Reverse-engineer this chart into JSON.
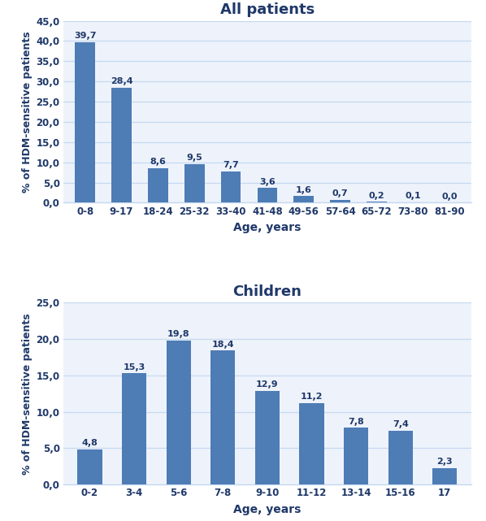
{
  "chart1": {
    "title": "All patients",
    "categories": [
      "0-8",
      "9-17",
      "18-24",
      "25-32",
      "33-40",
      "41-48",
      "49-56",
      "57-64",
      "65-72",
      "73-80",
      "81-90"
    ],
    "values": [
      39.7,
      28.4,
      8.6,
      9.5,
      7.7,
      3.6,
      1.6,
      0.7,
      0.2,
      0.1,
      0.0
    ],
    "ylim": [
      0,
      45
    ],
    "yticks": [
      0.0,
      5.0,
      10.0,
      15.0,
      20.0,
      25.0,
      30.0,
      35.0,
      40.0,
      45.0
    ],
    "ytick_labels": [
      "0,0",
      "5,0",
      "10,0",
      "15,0",
      "20,0",
      "25,0",
      "30,0",
      "35,0",
      "40,0",
      "45,0"
    ],
    "xlabel": "Age, years",
    "ylabel": "% of HDM-sensitive patients"
  },
  "chart2": {
    "title": "Children",
    "categories": [
      "0-2",
      "3-4",
      "5-6",
      "7-8",
      "9-10",
      "11-12",
      "13-14",
      "15-16",
      "17"
    ],
    "values": [
      4.8,
      15.3,
      19.8,
      18.4,
      12.9,
      11.2,
      7.8,
      7.4,
      2.3
    ],
    "ylim": [
      0,
      25
    ],
    "yticks": [
      0.0,
      5.0,
      10.0,
      15.0,
      20.0,
      25.0
    ],
    "ytick_labels": [
      "0,0",
      "5,0",
      "10,0",
      "15,0",
      "20,0",
      "25,0"
    ],
    "xlabel": "Age, years",
    "ylabel": "% of HDM-sensitive patients"
  },
  "bar_color1": "#4e7cb5",
  "bar_color2": "#4e7cb5",
  "title_color": "#1f3869",
  "label_color": "#1f3869",
  "grid_color": "#c5d9f1",
  "bg_color": "#eef3fb",
  "fig_bg": "#ffffff",
  "title_fontsize": 13,
  "label_fontsize": 9.5,
  "tick_fontsize": 8.5,
  "annotation_fontsize": 8,
  "bar_width": 0.55
}
